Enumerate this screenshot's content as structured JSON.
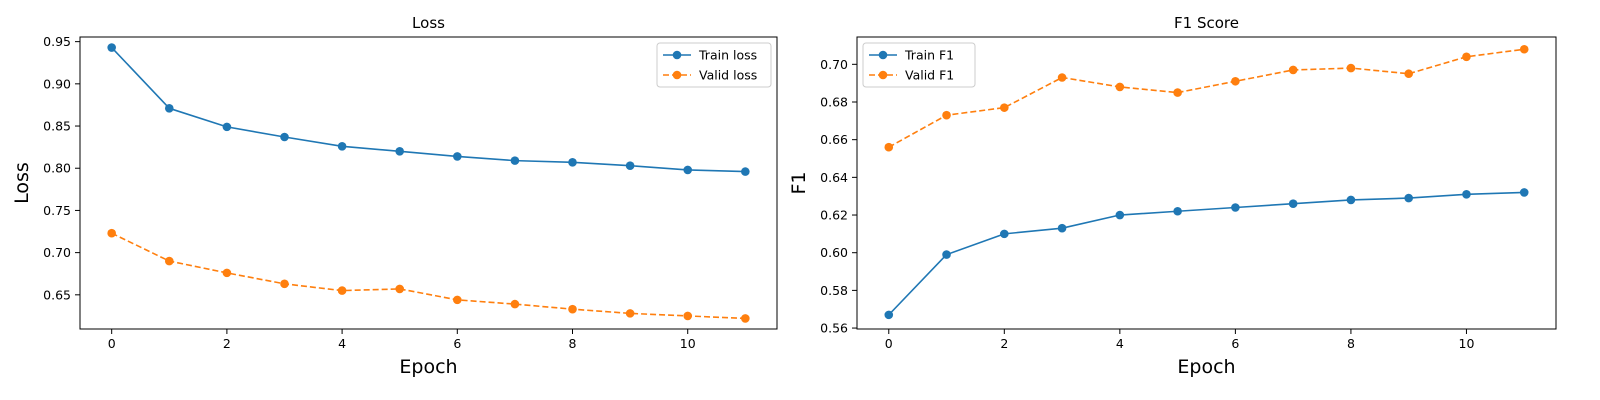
{
  "chart_data": [
    {
      "type": "line",
      "title": "Loss",
      "xlabel": "Epoch",
      "ylabel": "Loss",
      "x": [
        0,
        1,
        2,
        3,
        4,
        5,
        6,
        7,
        8,
        9,
        10,
        11
      ],
      "xticks": [
        0,
        2,
        4,
        6,
        8,
        10
      ],
      "xtick_labels": [
        "0",
        "2",
        "4",
        "6",
        "8",
        "10"
      ],
      "xlim": [
        -0.55,
        11.55
      ],
      "yticks": [
        0.65,
        0.7,
        0.75,
        0.8,
        0.85,
        0.9,
        0.95
      ],
      "ytick_labels": [
        "0.65",
        "0.70",
        "0.75",
        "0.80",
        "0.85",
        "0.90",
        "0.95"
      ],
      "ylim": [
        0.6095,
        0.9555
      ],
      "grid": false,
      "legend": "top-right",
      "series": [
        {
          "name": "Train loss",
          "color": "#1f77b4",
          "style": "solid",
          "values": [
            0.943,
            0.871,
            0.849,
            0.837,
            0.826,
            0.82,
            0.814,
            0.809,
            0.807,
            0.803,
            0.798,
            0.796
          ]
        },
        {
          "name": "Valid loss",
          "color": "#ff7f0e",
          "style": "dashed",
          "values": [
            0.723,
            0.69,
            0.676,
            0.663,
            0.655,
            0.657,
            0.644,
            0.639,
            0.633,
            0.628,
            0.625,
            0.622
          ]
        }
      ]
    },
    {
      "type": "line",
      "title": "F1 Score",
      "xlabel": "Epoch",
      "ylabel": "F1",
      "x": [
        0,
        1,
        2,
        3,
        4,
        5,
        6,
        7,
        8,
        9,
        10,
        11
      ],
      "xticks": [
        0,
        2,
        4,
        6,
        8,
        10
      ],
      "xtick_labels": [
        "0",
        "2",
        "4",
        "6",
        "8",
        "10"
      ],
      "xlim": [
        -0.55,
        11.55
      ],
      "yticks": [
        0.56,
        0.58,
        0.6,
        0.62,
        0.64,
        0.66,
        0.68,
        0.7
      ],
      "ytick_labels": [
        "0.56",
        "0.58",
        "0.60",
        "0.62",
        "0.64",
        "0.66",
        "0.68",
        "0.70"
      ],
      "ylim": [
        0.5595,
        0.7145
      ],
      "grid": false,
      "legend": "top-left",
      "series": [
        {
          "name": "Train F1",
          "color": "#1f77b4",
          "style": "solid",
          "values": [
            0.567,
            0.599,
            0.61,
            0.613,
            0.62,
            0.622,
            0.624,
            0.626,
            0.628,
            0.629,
            0.631,
            0.632
          ]
        },
        {
          "name": "Valid F1",
          "color": "#ff7f0e",
          "style": "dashed",
          "values": [
            0.656,
            0.673,
            0.677,
            0.693,
            0.688,
            0.685,
            0.691,
            0.697,
            0.698,
            0.695,
            0.704,
            0.708
          ]
        }
      ]
    }
  ]
}
